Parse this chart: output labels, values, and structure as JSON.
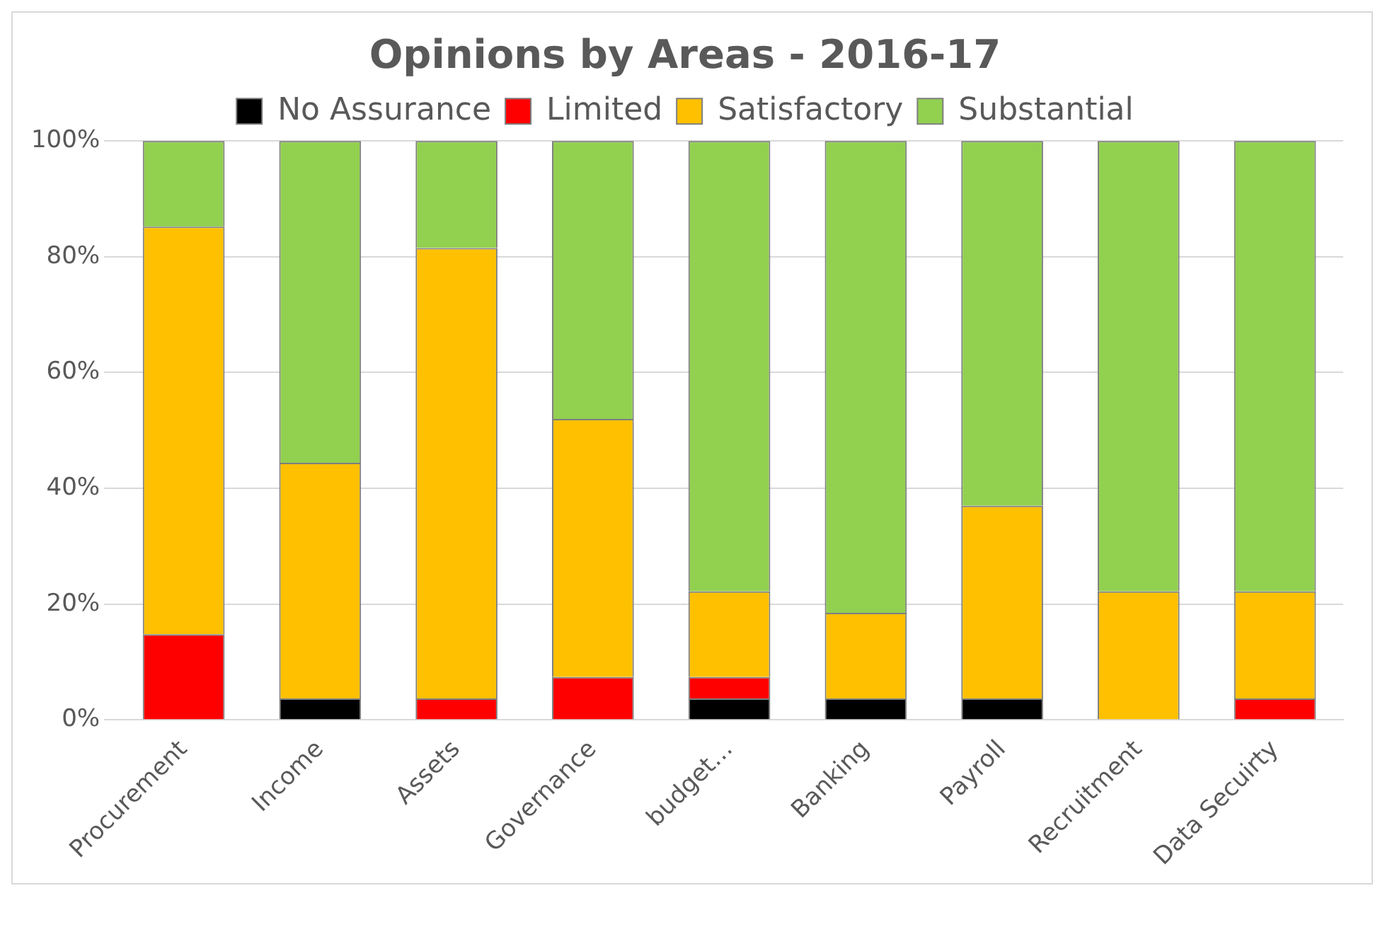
{
  "chart_data": {
    "type": "bar",
    "title": "Opinions by Areas - 2016-17",
    "stacked": true,
    "grid": "y",
    "legend": "top",
    "categories": [
      "Procurement",
      "Income",
      "Assets",
      "Governance",
      "budget…",
      "Banking",
      "Payroll",
      "Recruitment",
      "Data Secuirty"
    ],
    "series": [
      {
        "name": "No Assurance",
        "color": "#000000",
        "values": [
          0,
          3.7,
          0,
          0,
          3.7,
          3.7,
          3.7,
          0,
          0
        ]
      },
      {
        "name": "Limited",
        "color": "#ff0000",
        "values": [
          14.8,
          0,
          3.7,
          7.4,
          3.7,
          0,
          0,
          0,
          3.7
        ]
      },
      {
        "name": "Satisfactory",
        "color": "#ffc000",
        "values": [
          70.4,
          40.7,
          77.8,
          44.6,
          14.8,
          14.8,
          33.3,
          22.2,
          18.5
        ]
      },
      {
        "name": "Substantial",
        "color": "#92d050",
        "values": [
          14.8,
          55.6,
          18.5,
          48,
          77.8,
          81.5,
          63,
          77.8,
          77.8
        ]
      }
    ],
    "ylim": [
      0,
      100
    ],
    "yticks": [
      {
        "value": 0,
        "label": "0%"
      },
      {
        "value": 20,
        "label": "20%"
      },
      {
        "value": 40,
        "label": "40%"
      },
      {
        "value": 60,
        "label": "60%"
      },
      {
        "value": 80,
        "label": "80%"
      },
      {
        "value": 100,
        "label": "100%"
      }
    ]
  }
}
